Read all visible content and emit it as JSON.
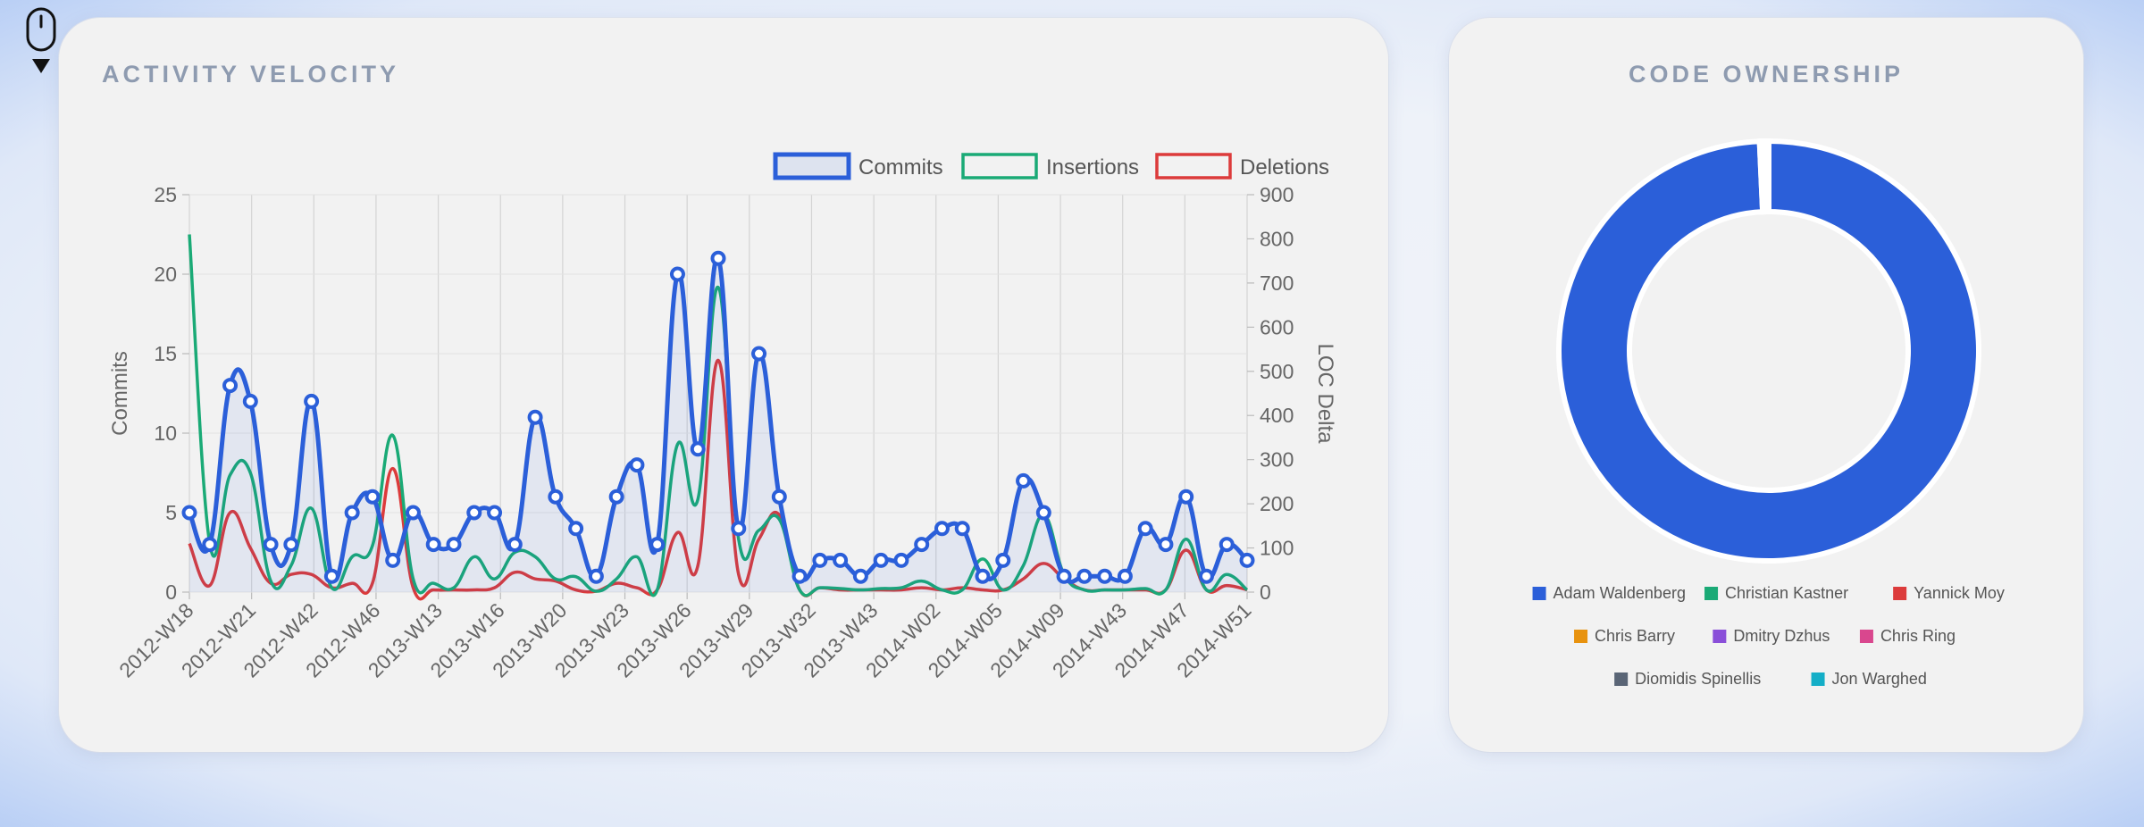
{
  "charts": {
    "velocity_title": "ACTIVITY VELOCITY",
    "ownership_title": "CODE OWNERSHIP"
  },
  "colors": {
    "commits": "#2b5fd9",
    "insertions": "#1aaa76",
    "deletions": "#dc3b3b",
    "commits_fill": "rgba(43,95,217,0.08)"
  },
  "icons": {
    "mouse": "mouse-icon",
    "scroll": "caret-down-icon"
  },
  "chart_data": [
    {
      "type": "line",
      "title": "ACTIVITY VELOCITY",
      "ylabel": "Commits",
      "y2label": "LOC Delta",
      "ylim": [
        0,
        25
      ],
      "y2lim": [
        0,
        900
      ],
      "yticks": [
        0,
        5,
        10,
        15,
        20,
        25
      ],
      "y2ticks": [
        0,
        100,
        200,
        300,
        400,
        500,
        600,
        700,
        800,
        900
      ],
      "xticklabels": [
        "2012-W18",
        "2012-W21",
        "2012-W42",
        "2012-W46",
        "2013-W13",
        "2013-W16",
        "2013-W20",
        "2013-W23",
        "2013-W26",
        "2013-W29",
        "2013-W32",
        "2013-W43",
        "2014-W02",
        "2014-W05",
        "2014-W09",
        "2014-W43",
        "2014-W47",
        "2014-W51"
      ],
      "legend_position": "top-right",
      "grid": "vertical",
      "series": [
        {
          "name": "Commits",
          "axis": "left",
          "values": [
            5,
            3,
            13,
            12,
            3,
            3,
            12,
            1,
            5,
            6,
            2,
            5,
            3,
            3,
            5,
            5,
            3,
            11,
            6,
            4,
            1,
            6,
            8,
            3,
            20,
            9,
            21,
            4,
            15,
            6,
            1,
            2,
            2,
            1,
            2,
            2,
            3,
            4,
            4,
            1,
            2,
            7,
            5,
            1,
            1,
            1,
            1,
            4,
            3,
            6,
            1,
            3,
            2
          ]
        },
        {
          "name": "Insertions",
          "axis": "right",
          "values": [
            810,
            110,
            265,
            270,
            25,
            60,
            190,
            10,
            80,
            105,
            355,
            30,
            20,
            10,
            80,
            30,
            90,
            80,
            30,
            35,
            2,
            30,
            80,
            5,
            335,
            210,
            690,
            120,
            140,
            165,
            5,
            10,
            8,
            5,
            8,
            10,
            25,
            5,
            5,
            75,
            5,
            60,
            175,
            40,
            5,
            5,
            5,
            8,
            5,
            120,
            5,
            40,
            5
          ]
        },
        {
          "name": "Deletions",
          "axis": "right",
          "values": [
            110,
            15,
            180,
            100,
            20,
            40,
            40,
            10,
            20,
            20,
            280,
            10,
            5,
            5,
            5,
            10,
            45,
            30,
            25,
            5,
            2,
            20,
            10,
            5,
            135,
            60,
            525,
            40,
            120,
            175,
            5,
            10,
            5,
            5,
            5,
            5,
            10,
            5,
            10,
            5,
            5,
            30,
            65,
            30,
            5,
            5,
            5,
            5,
            5,
            95,
            5,
            15,
            5
          ]
        }
      ]
    },
    {
      "type": "pie",
      "title": "CODE OWNERSHIP",
      "donut": true,
      "labels": [
        "Adam Waldenberg",
        "Christian Kastner",
        "Yannick Moy",
        "Chris Barry",
        "Dmitry Dzhus",
        "Chris Ring",
        "Diomidis Spinellis",
        "Jon Warghed"
      ],
      "values": [
        99,
        0.1,
        0.1,
        0.1,
        0.1,
        0.1,
        0.1,
        0.1
      ],
      "colors": [
        "#2b5fd9",
        "#1aaa76",
        "#dc3b3b",
        "#e8920e",
        "#8a4fd9",
        "#d9478e",
        "#5a6576",
        "#14aec7"
      ],
      "legend_position": "bottom"
    }
  ]
}
